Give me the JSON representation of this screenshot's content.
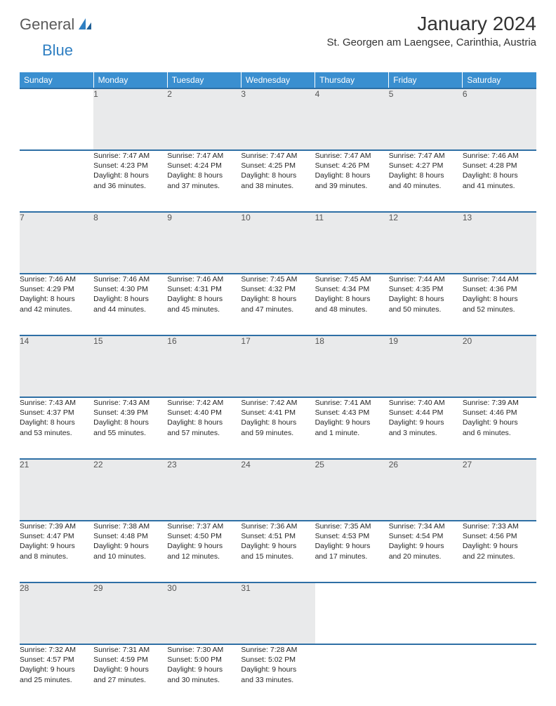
{
  "logo": {
    "word1": "General",
    "word2": "Blue"
  },
  "header": {
    "month_title": "January 2024",
    "location": "St. Georgen am Laengsee, Carinthia, Austria"
  },
  "colors": {
    "header_bg": "#3a8fd0",
    "row_divider": "#2e6fa5",
    "daynum_bg": "#e9eaeb",
    "text": "#262626",
    "logo_gray": "#5a5a5a",
    "logo_blue": "#2f7fc2"
  },
  "weekdays": [
    "Sunday",
    "Monday",
    "Tuesday",
    "Wednesday",
    "Thursday",
    "Friday",
    "Saturday"
  ],
  "weeks": [
    [
      null,
      {
        "n": "1",
        "sunrise": "Sunrise: 7:47 AM",
        "sunset": "Sunset: 4:23 PM",
        "day1": "Daylight: 8 hours",
        "day2": "and 36 minutes."
      },
      {
        "n": "2",
        "sunrise": "Sunrise: 7:47 AM",
        "sunset": "Sunset: 4:24 PM",
        "day1": "Daylight: 8 hours",
        "day2": "and 37 minutes."
      },
      {
        "n": "3",
        "sunrise": "Sunrise: 7:47 AM",
        "sunset": "Sunset: 4:25 PM",
        "day1": "Daylight: 8 hours",
        "day2": "and 38 minutes."
      },
      {
        "n": "4",
        "sunrise": "Sunrise: 7:47 AM",
        "sunset": "Sunset: 4:26 PM",
        "day1": "Daylight: 8 hours",
        "day2": "and 39 minutes."
      },
      {
        "n": "5",
        "sunrise": "Sunrise: 7:47 AM",
        "sunset": "Sunset: 4:27 PM",
        "day1": "Daylight: 8 hours",
        "day2": "and 40 minutes."
      },
      {
        "n": "6",
        "sunrise": "Sunrise: 7:46 AM",
        "sunset": "Sunset: 4:28 PM",
        "day1": "Daylight: 8 hours",
        "day2": "and 41 minutes."
      }
    ],
    [
      {
        "n": "7",
        "sunrise": "Sunrise: 7:46 AM",
        "sunset": "Sunset: 4:29 PM",
        "day1": "Daylight: 8 hours",
        "day2": "and 42 minutes."
      },
      {
        "n": "8",
        "sunrise": "Sunrise: 7:46 AM",
        "sunset": "Sunset: 4:30 PM",
        "day1": "Daylight: 8 hours",
        "day2": "and 44 minutes."
      },
      {
        "n": "9",
        "sunrise": "Sunrise: 7:46 AM",
        "sunset": "Sunset: 4:31 PM",
        "day1": "Daylight: 8 hours",
        "day2": "and 45 minutes."
      },
      {
        "n": "10",
        "sunrise": "Sunrise: 7:45 AM",
        "sunset": "Sunset: 4:32 PM",
        "day1": "Daylight: 8 hours",
        "day2": "and 47 minutes."
      },
      {
        "n": "11",
        "sunrise": "Sunrise: 7:45 AM",
        "sunset": "Sunset: 4:34 PM",
        "day1": "Daylight: 8 hours",
        "day2": "and 48 minutes."
      },
      {
        "n": "12",
        "sunrise": "Sunrise: 7:44 AM",
        "sunset": "Sunset: 4:35 PM",
        "day1": "Daylight: 8 hours",
        "day2": "and 50 minutes."
      },
      {
        "n": "13",
        "sunrise": "Sunrise: 7:44 AM",
        "sunset": "Sunset: 4:36 PM",
        "day1": "Daylight: 8 hours",
        "day2": "and 52 minutes."
      }
    ],
    [
      {
        "n": "14",
        "sunrise": "Sunrise: 7:43 AM",
        "sunset": "Sunset: 4:37 PM",
        "day1": "Daylight: 8 hours",
        "day2": "and 53 minutes."
      },
      {
        "n": "15",
        "sunrise": "Sunrise: 7:43 AM",
        "sunset": "Sunset: 4:39 PM",
        "day1": "Daylight: 8 hours",
        "day2": "and 55 minutes."
      },
      {
        "n": "16",
        "sunrise": "Sunrise: 7:42 AM",
        "sunset": "Sunset: 4:40 PM",
        "day1": "Daylight: 8 hours",
        "day2": "and 57 minutes."
      },
      {
        "n": "17",
        "sunrise": "Sunrise: 7:42 AM",
        "sunset": "Sunset: 4:41 PM",
        "day1": "Daylight: 8 hours",
        "day2": "and 59 minutes."
      },
      {
        "n": "18",
        "sunrise": "Sunrise: 7:41 AM",
        "sunset": "Sunset: 4:43 PM",
        "day1": "Daylight: 9 hours",
        "day2": "and 1 minute."
      },
      {
        "n": "19",
        "sunrise": "Sunrise: 7:40 AM",
        "sunset": "Sunset: 4:44 PM",
        "day1": "Daylight: 9 hours",
        "day2": "and 3 minutes."
      },
      {
        "n": "20",
        "sunrise": "Sunrise: 7:39 AM",
        "sunset": "Sunset: 4:46 PM",
        "day1": "Daylight: 9 hours",
        "day2": "and 6 minutes."
      }
    ],
    [
      {
        "n": "21",
        "sunrise": "Sunrise: 7:39 AM",
        "sunset": "Sunset: 4:47 PM",
        "day1": "Daylight: 9 hours",
        "day2": "and 8 minutes."
      },
      {
        "n": "22",
        "sunrise": "Sunrise: 7:38 AM",
        "sunset": "Sunset: 4:48 PM",
        "day1": "Daylight: 9 hours",
        "day2": "and 10 minutes."
      },
      {
        "n": "23",
        "sunrise": "Sunrise: 7:37 AM",
        "sunset": "Sunset: 4:50 PM",
        "day1": "Daylight: 9 hours",
        "day2": "and 12 minutes."
      },
      {
        "n": "24",
        "sunrise": "Sunrise: 7:36 AM",
        "sunset": "Sunset: 4:51 PM",
        "day1": "Daylight: 9 hours",
        "day2": "and 15 minutes."
      },
      {
        "n": "25",
        "sunrise": "Sunrise: 7:35 AM",
        "sunset": "Sunset: 4:53 PM",
        "day1": "Daylight: 9 hours",
        "day2": "and 17 minutes."
      },
      {
        "n": "26",
        "sunrise": "Sunrise: 7:34 AM",
        "sunset": "Sunset: 4:54 PM",
        "day1": "Daylight: 9 hours",
        "day2": "and 20 minutes."
      },
      {
        "n": "27",
        "sunrise": "Sunrise: 7:33 AM",
        "sunset": "Sunset: 4:56 PM",
        "day1": "Daylight: 9 hours",
        "day2": "and 22 minutes."
      }
    ],
    [
      {
        "n": "28",
        "sunrise": "Sunrise: 7:32 AM",
        "sunset": "Sunset: 4:57 PM",
        "day1": "Daylight: 9 hours",
        "day2": "and 25 minutes."
      },
      {
        "n": "29",
        "sunrise": "Sunrise: 7:31 AM",
        "sunset": "Sunset: 4:59 PM",
        "day1": "Daylight: 9 hours",
        "day2": "and 27 minutes."
      },
      {
        "n": "30",
        "sunrise": "Sunrise: 7:30 AM",
        "sunset": "Sunset: 5:00 PM",
        "day1": "Daylight: 9 hours",
        "day2": "and 30 minutes."
      },
      {
        "n": "31",
        "sunrise": "Sunrise: 7:28 AM",
        "sunset": "Sunset: 5:02 PM",
        "day1": "Daylight: 9 hours",
        "day2": "and 33 minutes."
      },
      null,
      null,
      null
    ]
  ]
}
